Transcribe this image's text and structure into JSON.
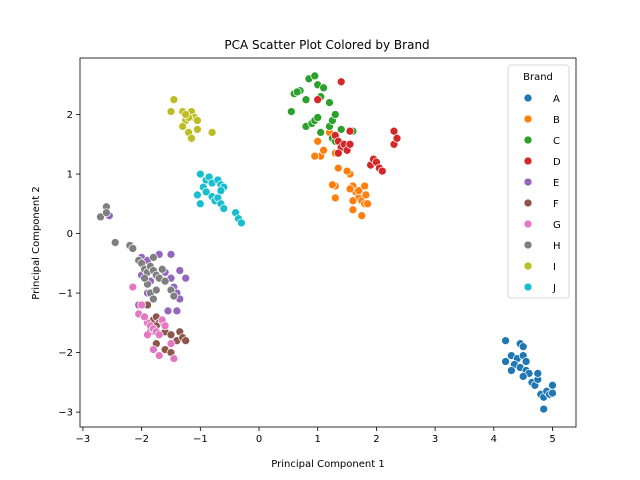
{
  "chart_data": {
    "type": "scatter",
    "title": "PCA Scatter Plot Colored by Brand",
    "xlabel": "Principal Component 1",
    "ylabel": "Principal Component 2",
    "xlim": [
      -3.05,
      5.4
    ],
    "ylim": [
      -3.25,
      2.95
    ],
    "xticks": [
      -3,
      -2,
      -1,
      0,
      1,
      2,
      3,
      4,
      5
    ],
    "yticks": [
      -3,
      -2,
      -1,
      0,
      1,
      2
    ],
    "grid": false,
    "legend": {
      "title": "Brand",
      "placement": "upper right"
    },
    "series": [
      {
        "name": "A",
        "color": "#1f77b4",
        "points": [
          [
            4.2,
            -1.8
          ],
          [
            4.3,
            -2.05
          ],
          [
            4.45,
            -1.85
          ],
          [
            4.5,
            -1.9
          ],
          [
            4.4,
            -2.1
          ],
          [
            4.5,
            -2.05
          ],
          [
            4.55,
            -2.15
          ],
          [
            4.35,
            -2.2
          ],
          [
            4.45,
            -2.25
          ],
          [
            4.55,
            -2.3
          ],
          [
            4.6,
            -2.35
          ],
          [
            4.5,
            -2.4
          ],
          [
            4.65,
            -2.5
          ],
          [
            4.7,
            -2.55
          ],
          [
            4.75,
            -2.45
          ],
          [
            4.8,
            -2.7
          ],
          [
            4.85,
            -2.75
          ],
          [
            4.9,
            -2.65
          ],
          [
            4.95,
            -2.7
          ],
          [
            5.0,
            -2.55
          ],
          [
            5.0,
            -2.68
          ],
          [
            4.85,
            -2.95
          ],
          [
            4.75,
            -2.35
          ],
          [
            4.2,
            -2.15
          ],
          [
            4.3,
            -2.3
          ]
        ]
      },
      {
        "name": "B",
        "color": "#ff7f0e",
        "points": [
          [
            1.0,
            1.55
          ],
          [
            1.05,
            1.3
          ],
          [
            1.1,
            1.4
          ],
          [
            1.2,
            1.7
          ],
          [
            1.3,
            1.35
          ],
          [
            1.35,
            1.1
          ],
          [
            1.3,
            0.8
          ],
          [
            1.25,
            0.82
          ],
          [
            1.3,
            0.6
          ],
          [
            1.5,
            1.05
          ],
          [
            1.55,
            1.0
          ],
          [
            1.6,
            0.8
          ],
          [
            1.65,
            0.7
          ],
          [
            1.7,
            0.6
          ],
          [
            1.75,
            0.55
          ],
          [
            1.8,
            0.5
          ],
          [
            1.85,
            0.5
          ],
          [
            1.75,
            0.3
          ],
          [
            1.6,
            0.4
          ],
          [
            1.7,
            0.72
          ],
          [
            1.8,
            0.8
          ],
          [
            1.82,
            0.65
          ],
          [
            1.55,
            0.75
          ],
          [
            1.6,
            0.55
          ],
          [
            1.5,
            1.05
          ],
          [
            0.95,
            1.3
          ]
        ]
      },
      {
        "name": "C",
        "color": "#2ca02c",
        "points": [
          [
            0.55,
            2.05
          ],
          [
            0.6,
            2.35
          ],
          [
            0.7,
            2.4
          ],
          [
            0.8,
            2.25
          ],
          [
            0.85,
            2.6
          ],
          [
            0.95,
            2.65
          ],
          [
            1.0,
            2.5
          ],
          [
            1.05,
            2.3
          ],
          [
            1.1,
            2.45
          ],
          [
            0.8,
            1.8
          ],
          [
            0.9,
            1.85
          ],
          [
            0.95,
            1.9
          ],
          [
            1.0,
            1.95
          ],
          [
            1.05,
            1.7
          ],
          [
            1.2,
            1.8
          ],
          [
            1.25,
            1.9
          ],
          [
            1.3,
            2.0
          ],
          [
            1.25,
            1.6
          ],
          [
            1.4,
            1.75
          ],
          [
            1.3,
            1.55
          ],
          [
            1.6,
            1.72
          ],
          [
            0.65,
            2.38
          ],
          [
            1.2,
            2.2
          ]
        ]
      },
      {
        "name": "D",
        "color": "#d62728",
        "points": [
          [
            1.0,
            2.25
          ],
          [
            1.3,
            1.65
          ],
          [
            1.35,
            1.55
          ],
          [
            1.4,
            1.45
          ],
          [
            1.45,
            1.5
          ],
          [
            1.5,
            1.4
          ],
          [
            1.55,
            1.5
          ],
          [
            1.55,
            1.72
          ],
          [
            1.4,
            2.55
          ],
          [
            1.9,
            1.15
          ],
          [
            1.95,
            1.25
          ],
          [
            2.0,
            1.2
          ],
          [
            2.05,
            1.1
          ],
          [
            2.1,
            1.05
          ],
          [
            2.3,
            1.72
          ],
          [
            2.3,
            1.5
          ],
          [
            2.35,
            1.6
          ],
          [
            1.35,
            1.35
          ]
        ]
      },
      {
        "name": "E",
        "color": "#9467bd",
        "points": [
          [
            -2.55,
            0.3
          ],
          [
            -2.0,
            -0.4
          ],
          [
            -1.9,
            -0.45
          ],
          [
            -1.7,
            -0.35
          ],
          [
            -1.5,
            -0.35
          ],
          [
            -1.35,
            -0.62
          ],
          [
            -1.25,
            -0.75
          ],
          [
            -1.6,
            -0.65
          ],
          [
            -1.5,
            -0.75
          ],
          [
            -1.45,
            -0.9
          ],
          [
            -1.4,
            -1.0
          ],
          [
            -1.35,
            -1.1
          ],
          [
            -1.4,
            -1.3
          ],
          [
            -1.55,
            -1.3
          ],
          [
            -2.05,
            -1.2
          ],
          [
            -1.9,
            -1.0
          ],
          [
            -2.0,
            -0.7
          ],
          [
            -1.85,
            -0.8
          ]
        ]
      },
      {
        "name": "F",
        "color": "#8c564b",
        "points": [
          [
            -1.9,
            -1.2
          ],
          [
            -1.8,
            -1.45
          ],
          [
            -1.75,
            -1.4
          ],
          [
            -1.7,
            -1.5
          ],
          [
            -1.75,
            -1.55
          ],
          [
            -1.6,
            -1.65
          ],
          [
            -1.5,
            -1.7
          ],
          [
            -1.4,
            -1.8
          ],
          [
            -1.35,
            -1.65
          ],
          [
            -1.3,
            -1.75
          ],
          [
            -1.25,
            -1.8
          ],
          [
            -1.85,
            -1.65
          ],
          [
            -1.75,
            -1.85
          ],
          [
            -1.6,
            -1.95
          ],
          [
            -1.5,
            -2.0
          ],
          [
            -1.8,
            -1.6
          ]
        ]
      },
      {
        "name": "G",
        "color": "#e377c2",
        "points": [
          [
            -2.15,
            -0.9
          ],
          [
            -2.05,
            -1.35
          ],
          [
            -2.0,
            -1.2
          ],
          [
            -1.9,
            -1.5
          ],
          [
            -1.85,
            -1.55
          ],
          [
            -1.8,
            -1.6
          ],
          [
            -1.75,
            -1.65
          ],
          [
            -1.7,
            -1.7
          ],
          [
            -1.65,
            -1.45
          ],
          [
            -1.6,
            -1.55
          ],
          [
            -1.8,
            -1.95
          ],
          [
            -1.7,
            -2.05
          ],
          [
            -1.5,
            -1.85
          ],
          [
            -1.45,
            -2.1
          ],
          [
            -1.9,
            -1.7
          ],
          [
            -1.95,
            -1.4
          ]
        ]
      },
      {
        "name": "H",
        "color": "#7f7f7f",
        "points": [
          [
            -2.6,
            0.45
          ],
          [
            -2.7,
            0.28
          ],
          [
            -2.6,
            0.35
          ],
          [
            -2.45,
            -0.15
          ],
          [
            -2.2,
            -0.2
          ],
          [
            -2.15,
            -0.25
          ],
          [
            -2.05,
            -0.45
          ],
          [
            -2.0,
            -0.5
          ],
          [
            -1.95,
            -0.6
          ],
          [
            -1.9,
            -0.65
          ],
          [
            -1.85,
            -0.55
          ],
          [
            -1.8,
            -0.62
          ],
          [
            -1.75,
            -0.7
          ],
          [
            -1.7,
            -0.75
          ],
          [
            -1.65,
            -0.6
          ],
          [
            -1.9,
            -0.85
          ],
          [
            -1.85,
            -1.0
          ],
          [
            -1.8,
            -1.1
          ],
          [
            -1.75,
            -0.95
          ],
          [
            -1.5,
            -0.95
          ],
          [
            -1.45,
            -1.05
          ],
          [
            -1.95,
            -0.75
          ],
          [
            -1.8,
            -0.4
          ],
          [
            -1.6,
            -0.8
          ]
        ]
      },
      {
        "name": "I",
        "color": "#bcbd22",
        "points": [
          [
            -1.45,
            2.25
          ],
          [
            -1.5,
            2.05
          ],
          [
            -1.3,
            2.05
          ],
          [
            -1.2,
            2.0
          ],
          [
            -1.15,
            2.05
          ],
          [
            -1.1,
            1.95
          ],
          [
            -1.05,
            1.9
          ],
          [
            -1.25,
            1.9
          ],
          [
            -1.3,
            1.8
          ],
          [
            -1.2,
            1.7
          ],
          [
            -1.15,
            1.6
          ],
          [
            -1.05,
            1.75
          ],
          [
            -0.8,
            1.7
          ],
          [
            -1.2,
            1.95
          ],
          [
            -1.25,
            2.0
          ]
        ]
      },
      {
        "name": "J",
        "color": "#17becf",
        "points": [
          [
            -1.0,
            1.0
          ],
          [
            -0.9,
            0.9
          ],
          [
            -0.85,
            0.95
          ],
          [
            -0.8,
            0.85
          ],
          [
            -0.7,
            0.9
          ],
          [
            -0.65,
            0.82
          ],
          [
            -0.6,
            0.78
          ],
          [
            -0.95,
            0.78
          ],
          [
            -0.9,
            0.7
          ],
          [
            -0.8,
            0.62
          ],
          [
            -0.75,
            0.55
          ],
          [
            -0.7,
            0.6
          ],
          [
            -0.65,
            0.5
          ],
          [
            -0.6,
            0.42
          ],
          [
            -1.0,
            0.5
          ],
          [
            -1.05,
            0.65
          ],
          [
            -0.4,
            0.35
          ],
          [
            -0.35,
            0.25
          ],
          [
            -0.3,
            0.18
          ],
          [
            -0.65,
            0.72
          ]
        ]
      }
    ]
  }
}
